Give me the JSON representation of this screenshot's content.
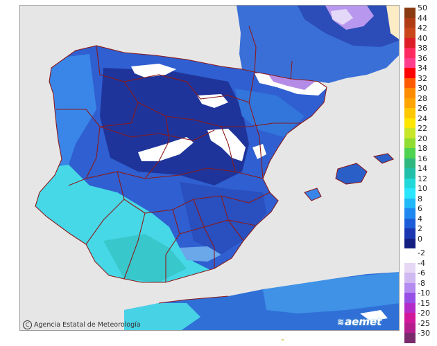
{
  "credit": {
    "icon": "copyright-icon",
    "symbol": "C",
    "text": "Agencia Estatal de Meteorología"
  },
  "brand": {
    "icon": "aemet-waves-icon",
    "text": "aemet"
  },
  "colors": {
    "sea": "#e6e6e6",
    "africa": "#fbecc6",
    "border": "#8b1a1a",
    "deep": "#1d2e8c",
    "mid": "#2d56c8",
    "blue": "#3a80e6",
    "light": "#48a8f0",
    "cyan": "#40dce8",
    "teal": "#38c4c0",
    "snow": "#ffffff",
    "lavender": "#c8b0f0",
    "purple": "#9a68d8"
  },
  "legend": [
    {
      "label": "50",
      "color": "#8a3a10"
    },
    {
      "label": "44",
      "color": "#b03c14"
    },
    {
      "label": "42",
      "color": "#c8461a"
    },
    {
      "label": "40",
      "color": "#dd1e28"
    },
    {
      "label": "38",
      "color": "#ff2a60"
    },
    {
      "label": "36",
      "color": "#ff3d8c"
    },
    {
      "label": "34",
      "color": "#ff0000"
    },
    {
      "label": "32",
      "color": "#ff5a00"
    },
    {
      "label": "30",
      "color": "#ff8c00"
    },
    {
      "label": "28",
      "color": "#ffa400"
    },
    {
      "label": "26",
      "color": "#ffc800"
    },
    {
      "label": "24",
      "color": "#ffe600"
    },
    {
      "label": "22",
      "color": "#c8e628"
    },
    {
      "label": "20",
      "color": "#90dc32"
    },
    {
      "label": "18",
      "color": "#4fd24f"
    },
    {
      "label": "16",
      "color": "#2eb880"
    },
    {
      "label": "14",
      "color": "#22c0a8"
    },
    {
      "label": "12",
      "color": "#22d8d8"
    },
    {
      "label": "10",
      "color": "#2ae6ff"
    },
    {
      "label": "8",
      "color": "#20b8f8"
    },
    {
      "label": "6",
      "color": "#1e88f0"
    },
    {
      "label": "4",
      "color": "#1c5cd8"
    },
    {
      "label": "2",
      "color": "#1a36b0"
    },
    {
      "label": "0",
      "color": "#141e80"
    },
    {
      "label": "-2",
      "color": "#ffffff"
    },
    {
      "label": "-4",
      "color": "#e6d8f5"
    },
    {
      "label": "-6",
      "color": "#d0b8f0"
    },
    {
      "label": "-8",
      "color": "#b48cf0"
    },
    {
      "label": "-10",
      "color": "#9650e6"
    },
    {
      "label": "-15",
      "color": "#b42cc8"
    },
    {
      "label": "-20",
      "color": "#d2189a"
    },
    {
      "label": "-25",
      "color": "#b41e8c"
    },
    {
      "label": "-30",
      "color": "#7a2a6a"
    }
  ]
}
